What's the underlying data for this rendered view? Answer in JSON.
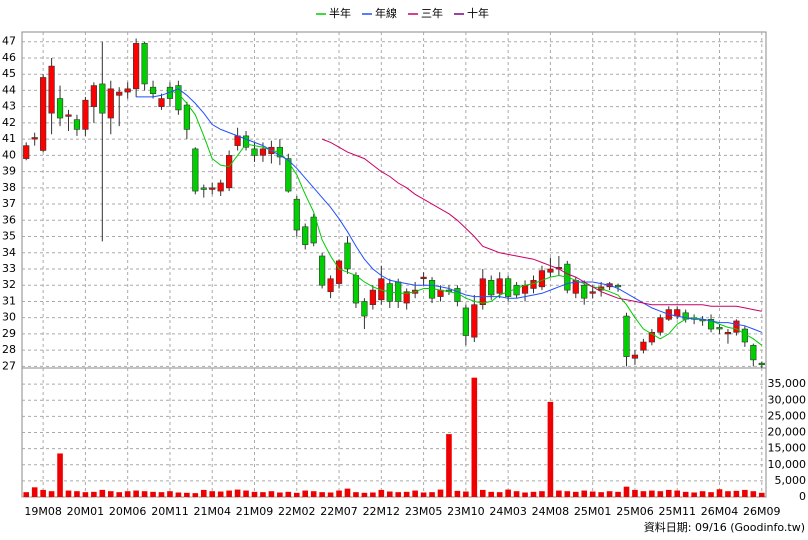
{
  "chart_data": [
    {
      "type": "candlestick",
      "categories": [
        null,
        null,
        "19M08",
        null,
        null,
        null,
        null,
        "20M01",
        null,
        null,
        null,
        null,
        "20M06",
        null,
        null,
        null,
        null,
        "20M11",
        null,
        null,
        null,
        null,
        "21M04",
        null,
        null,
        null,
        null,
        "21M09",
        null,
        null,
        null,
        null,
        "22M02",
        null,
        null,
        null,
        null,
        "22M07",
        null,
        null,
        null,
        null,
        "22M12",
        null,
        null,
        null,
        null,
        "23M05",
        null,
        null,
        null,
        null,
        "23M10",
        null,
        null,
        null,
        null,
        "24M03",
        null,
        null,
        null,
        null,
        "24M08",
        null,
        null,
        null,
        null,
        "25M01",
        null,
        null,
        null,
        null,
        "25M06",
        null,
        null,
        null,
        null,
        "25M11",
        null,
        null,
        null,
        null,
        "26M04",
        null,
        null,
        null,
        null,
        "26M09"
      ],
      "open": [
        39.8,
        41,
        40.3,
        42.6,
        43.5,
        42.4,
        42.2,
        41.6,
        43,
        44.4,
        42.3,
        43.7,
        43.9,
        44.1,
        46.9,
        44.2,
        43,
        44.2,
        44.3,
        43.1,
        40.4,
        38,
        37.9,
        37.8,
        38,
        40.6,
        41.2,
        40.4,
        40,
        40.1,
        40.5,
        39.8,
        37.3,
        35.6,
        36.2,
        33.8,
        31.6,
        32.1,
        34.6,
        32.6,
        31,
        30.8,
        31.1,
        32.1,
        32.2,
        30.9,
        31.5,
        32.4,
        32.3,
        31.3,
        31.7,
        31.8,
        30.6,
        28.8,
        30.8,
        32.3,
        31.5,
        32.4,
        32,
        31.5,
        31.8,
        31.9,
        32.8,
        33,
        33.3,
        31.5,
        32,
        31.5,
        31.7,
        31.9,
        32,
        30.1,
        27.5,
        28,
        28.5,
        29.1,
        29.9,
        30.1,
        30.3,
        30,
        29.9,
        29.9,
        29.4,
        29,
        29.1,
        29.3,
        28.3,
        27.2
      ],
      "high": [
        40.8,
        41.4,
        45,
        46,
        44.3,
        42.8,
        42.5,
        43.6,
        44.5,
        47,
        44.6,
        44.2,
        44.5,
        47.2,
        47,
        44.6,
        43.8,
        44.5,
        44.6,
        43.3,
        40.5,
        38.2,
        38.3,
        38.5,
        40.3,
        41.7,
        41.5,
        40.8,
        40.8,
        40.9,
        41,
        40.1,
        37.5,
        35.8,
        36.4,
        34,
        32.6,
        33.6,
        35,
        32.8,
        31.2,
        32,
        33.2,
        32.4,
        32.4,
        31.8,
        32.2,
        32.8,
        32.5,
        32,
        32,
        32,
        30.8,
        31.4,
        33,
        32.6,
        32.8,
        32.6,
        32.2,
        32.3,
        32.6,
        33.2,
        33.7,
        33.8,
        33.5,
        32.5,
        32.3,
        32,
        32.2,
        32.2,
        32.1,
        30.3,
        28,
        28.7,
        29.3,
        30.2,
        30.7,
        30.7,
        30.5,
        30.2,
        30.1,
        30.2,
        29.6,
        29.3,
        29.9,
        29.5,
        28.4,
        27.3
      ],
      "low": [
        39.7,
        40.6,
        40.2,
        41.3,
        41.8,
        41.5,
        41.2,
        41.2,
        42,
        34.7,
        41.3,
        41.8,
        43.5,
        43.6,
        44,
        43.5,
        42.8,
        43,
        42.5,
        41,
        37.6,
        37.4,
        37.6,
        37.5,
        37.8,
        40.3,
        40.3,
        39.6,
        39.6,
        39.5,
        39.4,
        37.7,
        35,
        34.2,
        34.4,
        31.8,
        31.2,
        31.8,
        32.7,
        30.6,
        29.3,
        30.5,
        30.8,
        30.6,
        30.6,
        30.5,
        31.2,
        32,
        30.9,
        31,
        31.4,
        30.7,
        28.3,
        28.5,
        30.5,
        31.1,
        31.2,
        31,
        31.2,
        31,
        31.5,
        31.7,
        32.5,
        32.6,
        31.5,
        31.2,
        30.8,
        31.2,
        31.3,
        31.7,
        31.6,
        27,
        27.1,
        27.8,
        28.3,
        28.9,
        29.8,
        29.9,
        29.7,
        29.6,
        29.5,
        29.1,
        29,
        28.4,
        28.9,
        28.2,
        27,
        26.9
      ],
      "close": [
        40.6,
        41.1,
        44.8,
        45.5,
        42.3,
        42.5,
        41.6,
        43.4,
        44.3,
        42.6,
        44.1,
        43.9,
        44.1,
        46.9,
        44.4,
        43.8,
        43.5,
        43.5,
        42.8,
        41.6,
        37.8,
        37.9,
        38,
        38.3,
        40,
        41.2,
        40.5,
        40,
        40.4,
        40.5,
        39.9,
        37.8,
        35.4,
        34.5,
        34.6,
        32,
        32.4,
        33.5,
        33,
        30.9,
        30.1,
        31.7,
        32.4,
        31,
        31,
        31.6,
        31.7,
        32.5,
        31.2,
        31.7,
        31.6,
        31,
        28.9,
        30.8,
        32.4,
        31.4,
        32.4,
        31.3,
        31.4,
        32,
        32.3,
        32.9,
        33,
        33.1,
        31.7,
        32.3,
        31.2,
        31.6,
        31.9,
        32.1,
        31.9,
        27.6,
        27.7,
        28.5,
        29.1,
        30,
        30.5,
        30.5,
        29.9,
        29.9,
        29.8,
        29.3,
        29.3,
        29.1,
        29.8,
        28.5,
        27.4,
        27.1
      ],
      "up_color": "#ff0000",
      "down_color": "#00d000",
      "series": [
        {
          "name": "半年",
          "color": "#00cc00",
          "values": [
            null,
            null,
            null,
            null,
            null,
            null,
            null,
            null,
            null,
            null,
            null,
            null,
            null,
            null,
            null,
            null,
            null,
            44,
            43.8,
            43.2,
            42.5,
            41.2,
            39.8,
            39.4,
            39.3,
            40,
            40.7,
            40.6,
            40.5,
            40.3,
            40.2,
            39.6,
            38.8,
            37.6,
            36.5,
            34.8,
            33.8,
            33,
            32.8,
            32.6,
            32.2,
            31.9,
            31.7,
            31.6,
            31.5,
            31.5,
            31.6,
            31.8,
            31.8,
            31.7,
            31.6,
            31.5,
            31.2,
            31,
            30.9,
            31,
            31.4,
            31.6,
            31.8,
            32,
            32.1,
            32.3,
            32.5,
            32.6,
            32.5,
            32.3,
            32.1,
            31.9,
            31.8,
            31.6,
            31.4,
            30.8,
            30,
            29.3,
            29,
            28.7,
            29,
            29.6,
            29.9,
            30,
            29.9,
            29.8,
            29.6,
            29.4,
            29.3,
            29,
            28.7,
            28.3
          ]
        },
        {
          "name": "年線",
          "color": "#2050ff",
          "values": [
            null,
            null,
            null,
            null,
            null,
            null,
            null,
            null,
            null,
            null,
            null,
            null,
            null,
            43.6,
            43.6,
            43.6,
            43.7,
            43.9,
            44.1,
            43.7,
            43.2,
            42.6,
            41.9,
            41.6,
            41.4,
            41.2,
            41,
            40.8,
            40.6,
            40.3,
            40,
            39.7,
            39.2,
            38.6,
            38,
            37.4,
            36.8,
            36.1,
            35.3,
            34.4,
            33.6,
            33,
            32.6,
            32.3,
            32.2,
            32.1,
            32,
            32,
            32,
            31.9,
            31.8,
            31.6,
            31.4,
            31.3,
            31.3,
            31.3,
            31.3,
            31.2,
            31.2,
            31.3,
            31.4,
            31.5,
            31.7,
            31.9,
            32.1,
            32.2,
            32.2,
            32.2,
            32.1,
            32,
            31.8,
            31.5,
            31.2,
            30.9,
            30.6,
            30.4,
            30.2,
            30.1,
            30,
            29.9,
            29.9,
            29.8,
            29.7,
            29.7,
            29.6,
            29.5,
            29.3,
            29.1
          ]
        },
        {
          "name": "三年",
          "color": "#cc0066",
          "values": [
            null,
            null,
            null,
            null,
            null,
            null,
            null,
            null,
            null,
            null,
            null,
            null,
            null,
            null,
            null,
            null,
            null,
            null,
            null,
            null,
            null,
            null,
            null,
            null,
            null,
            null,
            null,
            null,
            null,
            null,
            null,
            null,
            null,
            null,
            null,
            41,
            40.8,
            40.5,
            40.2,
            40,
            39.8,
            39.4,
            39,
            38.7,
            38.3,
            38,
            37.6,
            37.3,
            37,
            36.7,
            36.4,
            36,
            35.5,
            35,
            34.4,
            34.2,
            34,
            33.9,
            33.8,
            33.7,
            33.6,
            33.4,
            33.2,
            33,
            32.7,
            32.5,
            32.2,
            31.9,
            31.6,
            31.4,
            31.2,
            31.1,
            31,
            30.9,
            30.8,
            30.8,
            30.8,
            30.8,
            30.8,
            30.8,
            30.8,
            30.7,
            30.7,
            30.7,
            30.7,
            30.6,
            30.5,
            30.4
          ]
        },
        {
          "name": "十年",
          "color": "#800080",
          "values": [
            null,
            null,
            null,
            null,
            null,
            null,
            null,
            null,
            null,
            null,
            null,
            null,
            null,
            null,
            null,
            null,
            null,
            null,
            null,
            null,
            null,
            null,
            null,
            null,
            null,
            null,
            null,
            null,
            null,
            null,
            null,
            null,
            null,
            null,
            null,
            null,
            null,
            null,
            null,
            null,
            null,
            null,
            null,
            null,
            null,
            null,
            null,
            null,
            null,
            null,
            null,
            null,
            null,
            null,
            null,
            null,
            null,
            null,
            null,
            null,
            null,
            null,
            null,
            null,
            null,
            null,
            null,
            null,
            null,
            null,
            null,
            null,
            null,
            null,
            null,
            null,
            null,
            null,
            null,
            null,
            null,
            null,
            null,
            null,
            null,
            null,
            null,
            null
          ]
        }
      ],
      "ylim": [
        26.9,
        47.6
      ],
      "yticks": [
        27,
        28,
        29,
        30,
        31,
        32,
        33,
        34,
        35,
        36,
        37,
        38,
        39,
        40,
        41,
        42,
        43,
        44,
        45,
        46,
        47
      ],
      "grid": true
    },
    {
      "type": "bar",
      "color": "#ee0000",
      "values": [
        1500,
        3000,
        2200,
        1800,
        13500,
        2000,
        1800,
        1500,
        1600,
        2200,
        1800,
        1500,
        1800,
        2000,
        1800,
        1600,
        1500,
        1800,
        1400,
        1300,
        1200,
        2200,
        1800,
        1700,
        2000,
        2300,
        2000,
        1600,
        1500,
        1800,
        1400,
        1600,
        1300,
        2000,
        1800,
        1500,
        1400,
        2000,
        2600,
        1500,
        1300,
        1400,
        2200,
        1700,
        1500,
        1600,
        2000,
        1400,
        1500,
        2300,
        19500,
        1900,
        1700,
        37000,
        2200,
        1600,
        1500,
        2300,
        1800,
        1400,
        1600,
        1800,
        29500,
        2000,
        1800,
        1600,
        2000,
        1700,
        1500,
        1800,
        1600,
        3200,
        2200,
        1800,
        2000,
        1800,
        2200,
        2000,
        1600,
        1400,
        1800,
        1500,
        2400,
        1800,
        1900,
        2200,
        1800,
        1300
      ],
      "ylim": [
        0,
        40000
      ],
      "yticks": [
        0,
        {
          "value": 5000,
          "label": "5,000"
        },
        {
          "value": 10000,
          "label": "10,000"
        },
        {
          "value": 15000,
          "label": "15,000"
        },
        {
          "value": 20000,
          "label": "20,000"
        },
        {
          "value": 25000,
          "label": "25,000"
        },
        {
          "value": 30000,
          "label": "30,000"
        },
        {
          "value": 35000,
          "label": "35,000"
        }
      ],
      "grid": true
    }
  ],
  "footer": "資料日期: 09/16  (Goodinfo.tw)"
}
